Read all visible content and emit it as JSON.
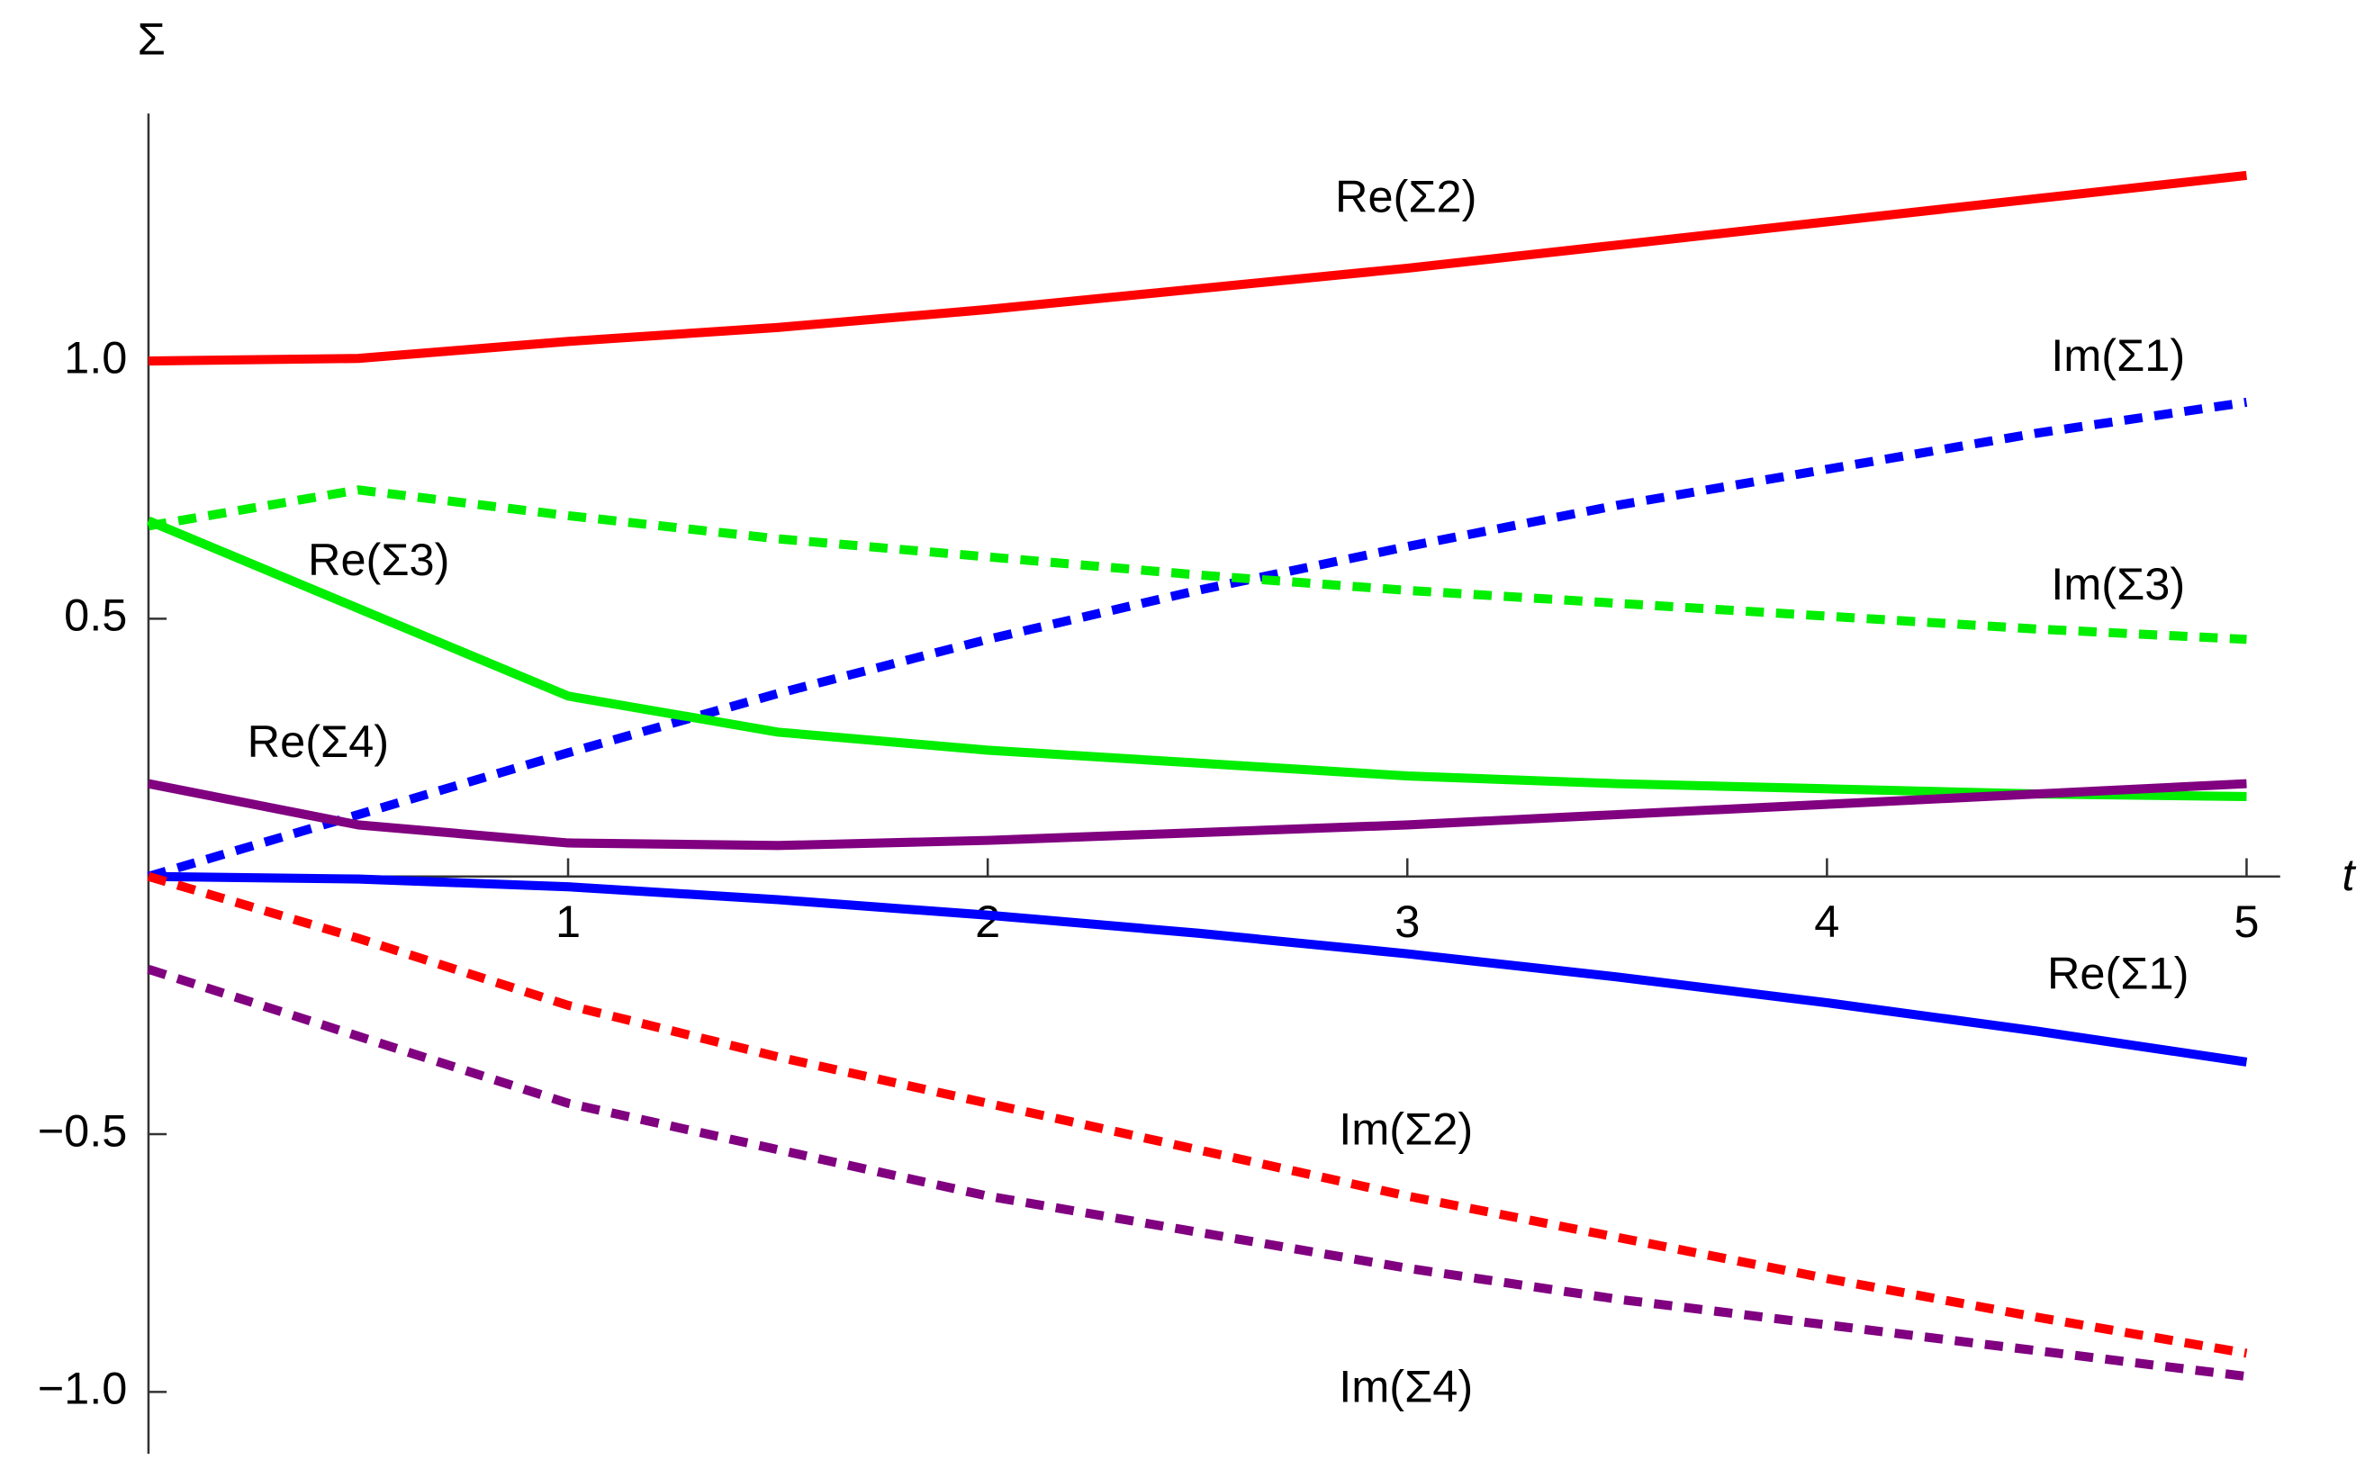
{
  "chart_data": {
    "type": "line",
    "x_label": "t",
    "y_label": "Σ",
    "x": [
      0,
      0.5,
      1,
      1.5,
      2,
      2.5,
      3,
      3.5,
      4,
      4.5,
      5
    ],
    "xlim": [
      0,
      5.08
    ],
    "ylim": [
      -1.12,
      1.48
    ],
    "xticks": [
      1,
      2,
      3,
      4,
      5
    ],
    "yticks": [
      {
        "value": -1,
        "label": "−1.0"
      },
      {
        "value": -0.5,
        "label": "−0.5"
      },
      0.5,
      {
        "value": 1,
        "label": "1.0"
      }
    ],
    "series": [
      {
        "name": "Re(Σ2)",
        "color": "#ff0000",
        "dashed": false,
        "values": [
          1.0,
          1.005,
          1.038,
          1.065,
          1.1,
          1.14,
          1.18,
          1.225,
          1.27,
          1.315,
          1.36
        ]
      },
      {
        "name": "Im(Σ1)",
        "color": "#0000ff",
        "dashed": true,
        "values": [
          0,
          0.12,
          0.24,
          0.355,
          0.46,
          0.555,
          0.64,
          0.72,
          0.79,
          0.86,
          0.92
        ]
      },
      {
        "name": "Re(Σ3)",
        "color": "#00ee00",
        "dashed": false,
        "values": [
          0.69,
          0.52,
          0.35,
          0.28,
          0.245,
          0.22,
          0.195,
          0.18,
          0.17,
          0.16,
          0.155
        ]
      },
      {
        "name": "Im(Σ3)",
        "color": "#00ee00",
        "dashed": true,
        "values": [
          0.68,
          0.75,
          0.7,
          0.655,
          0.62,
          0.585,
          0.555,
          0.53,
          0.505,
          0.48,
          0.46
        ]
      },
      {
        "name": "Re(Σ4)",
        "color": "#800080",
        "dashed": false,
        "values": [
          0.18,
          0.1,
          0.065,
          0.06,
          0.07,
          0.085,
          0.1,
          0.12,
          0.14,
          0.16,
          0.18
        ]
      },
      {
        "name": "Re(Σ1)",
        "color": "#0000ff",
        "dashed": false,
        "values": [
          0,
          -0.005,
          -0.02,
          -0.045,
          -0.075,
          -0.11,
          -0.15,
          -0.195,
          -0.245,
          -0.3,
          -0.36
        ]
      },
      {
        "name": "Im(Σ2)",
        "color": "#ff0000",
        "dashed": true,
        "values": [
          0,
          -0.12,
          -0.25,
          -0.35,
          -0.44,
          -0.53,
          -0.62,
          -0.7,
          -0.78,
          -0.855,
          -0.925
        ]
      },
      {
        "name": "Im(Σ4)",
        "color": "#800080",
        "dashed": true,
        "values": [
          -0.18,
          -0.31,
          -0.44,
          -0.53,
          -0.62,
          -0.69,
          -0.76,
          -0.82,
          -0.87,
          -0.92,
          -0.97
        ]
      }
    ]
  }
}
